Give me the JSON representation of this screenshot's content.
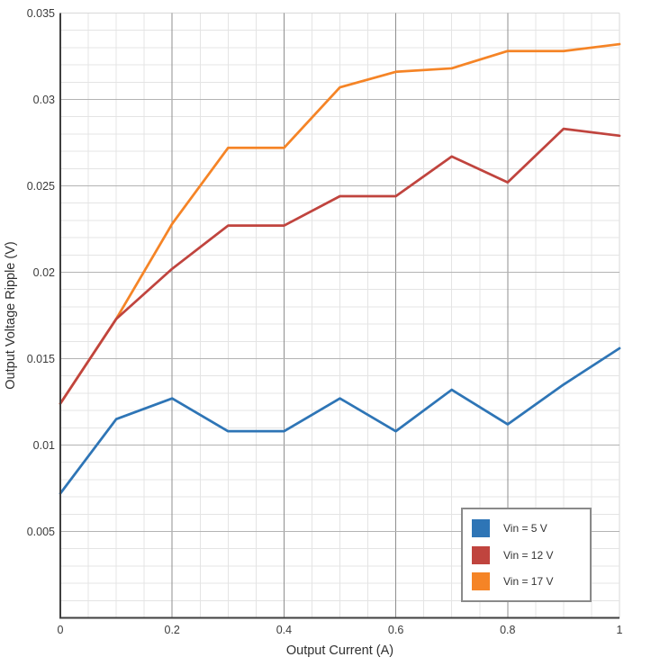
{
  "chart_data": {
    "type": "line",
    "title": "",
    "xlabel": "Output Current (A)",
    "ylabel": "Output Voltage Ripple (V)",
    "xlim": [
      0,
      1
    ],
    "ylim": [
      0,
      0.035
    ],
    "grid": true,
    "x_minor_step": 0.05,
    "y_minor_step": 0.001,
    "x_ticks": [
      0,
      0.2,
      0.4,
      0.6,
      0.8,
      1
    ],
    "x_tick_labels": [
      "0",
      "0.2",
      "0.4",
      "0.6",
      "0.8",
      "1"
    ],
    "y_ticks": [
      0.005,
      0.01,
      0.015,
      0.02,
      0.025,
      0.03,
      0.035
    ],
    "y_tick_labels": [
      "0.005",
      "0.01",
      "0.015",
      "0.02",
      "0.025",
      "0.03",
      "0.035"
    ],
    "x": [
      0,
      0.1,
      0.2,
      0.3,
      0.4,
      0.5,
      0.6,
      0.7,
      0.8,
      0.9,
      1.0
    ],
    "series": [
      {
        "name": "Vin = 5 V",
        "color": "#2E75B6",
        "values": [
          0.0072,
          0.0115,
          0.0127,
          0.0108,
          0.0108,
          0.0127,
          0.0108,
          0.0132,
          0.0112,
          0.0135,
          0.0156
        ]
      },
      {
        "name": "Vin = 12 V",
        "color": "#C0443E",
        "values": [
          0.0124,
          0.0173,
          0.0202,
          0.0227,
          0.0227,
          0.0244,
          0.0244,
          0.0267,
          0.0252,
          0.0283,
          0.0279
        ]
      },
      {
        "name": "Vin = 17 V",
        "color": "#F58426",
        "values": [
          0.0124,
          0.0173,
          0.0228,
          0.0272,
          0.0272,
          0.0307,
          0.0316,
          0.0318,
          0.0328,
          0.0328,
          0.0332
        ]
      }
    ],
    "legend_position": "bottom-right",
    "colors": {
      "minor_grid": "#e4e4e4",
      "major_grid_h": "#b3b3b3",
      "major_grid_v": "#8f8f8f",
      "axis": "#3f3f3f",
      "boundary": "#d8d8d8"
    }
  }
}
